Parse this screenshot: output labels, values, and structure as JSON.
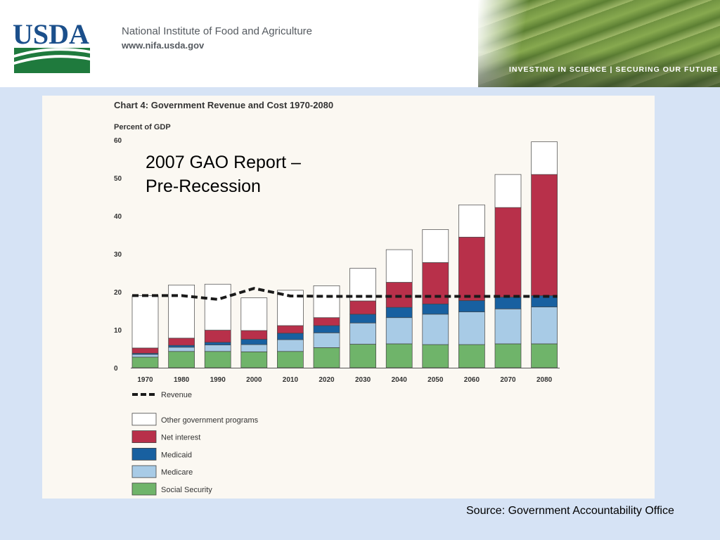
{
  "header": {
    "logo_text": "USDA",
    "org_name": "National Institute of Food and Agriculture",
    "org_url": "www.nifa.usda.gov",
    "tagline": "INVESTING IN SCIENCE | SECURING OUR FUTURE"
  },
  "overlay_note": [
    "2007 GAO Report –",
    "Pre-Recession"
  ],
  "source_note": "Source: Government Accountability Office",
  "colors": {
    "other": "#ffffff",
    "net_interest": "#b8304a",
    "medicaid": "#1860a0",
    "medicare": "#a8cbe6",
    "social_security": "#6fb46a",
    "revenue": "#1a1a1a"
  },
  "chart_data": {
    "type": "bar",
    "stacked": true,
    "title": "Chart 4: Government Revenue and Cost 1970-2080",
    "ylabel": "Percent of GDP",
    "ylim": [
      0,
      60
    ],
    "yticks": [
      0,
      10,
      20,
      30,
      40,
      50,
      60
    ],
    "grid": false,
    "legend_position": "bottom-left",
    "categories": [
      "1970",
      "1980",
      "1990",
      "2000",
      "2010",
      "2020",
      "2030",
      "2040",
      "2050",
      "2060",
      "2070",
      "2080"
    ],
    "series": [
      {
        "name": "Social Security",
        "color": "#6fb46a",
        "values": [
          2.8,
          4.3,
          4.3,
          4.2,
          4.3,
          5.3,
          6.2,
          6.3,
          6.1,
          6.1,
          6.3,
          6.3
        ]
      },
      {
        "name": "Medicare",
        "color": "#a8cbe6",
        "values": [
          0.7,
          1.1,
          1.7,
          1.9,
          3.1,
          3.9,
          5.6,
          6.9,
          8.0,
          8.6,
          9.2,
          9.7
        ]
      },
      {
        "name": "Medicaid",
        "color": "#1860a0",
        "values": [
          0.3,
          0.5,
          0.7,
          1.4,
          1.7,
          1.9,
          2.3,
          2.7,
          2.7,
          3.0,
          3.1,
          3.0
        ]
      },
      {
        "name": "Net interest",
        "color": "#b8304a",
        "values": [
          1.4,
          1.9,
          3.2,
          2.3,
          2.0,
          2.1,
          3.5,
          6.6,
          10.9,
          16.7,
          23.6,
          31.9
        ]
      },
      {
        "name": "Other government programs",
        "color": "#ffffff",
        "values": [
          13.8,
          14.0,
          12.1,
          8.6,
          9.3,
          8.4,
          8.6,
          8.6,
          8.7,
          8.5,
          8.7,
          8.6
        ]
      }
    ],
    "line_series": [
      {
        "name": "Revenue",
        "style": "dashed",
        "values": [
          19.0,
          19.0,
          18.0,
          20.9,
          18.9,
          18.8,
          18.8,
          18.8,
          18.8,
          18.8,
          18.8,
          18.8
        ]
      }
    ],
    "legend": [
      "Revenue",
      "Other government programs",
      "Net interest",
      "Medicaid",
      "Medicare",
      "Social Security"
    ]
  }
}
